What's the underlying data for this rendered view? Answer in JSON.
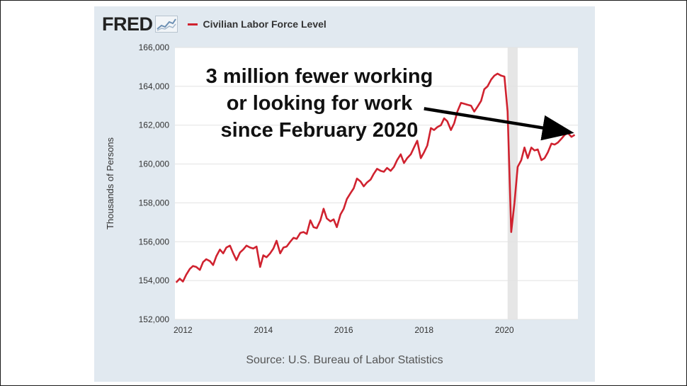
{
  "header": {
    "logo_text": "FRED",
    "legend_label": "Civilian Labor Force Level"
  },
  "source": "Source: U.S. Bureau of Labor Statistics",
  "annotation": {
    "lines": [
      "3 million fewer working",
      "or looking for work",
      "since February 2020"
    ]
  },
  "colors": {
    "series": "#d0222f",
    "panel": "#e1e9f0",
    "plot_bg": "#ffffff",
    "recession": "#e6e6e6",
    "grid": "#e2e2e2",
    "logo": "#222222"
  },
  "chart_data": {
    "type": "line",
    "ylabel": "Thousands of Persons",
    "xlabel": "",
    "xlim": [
      2011.8,
      2021.83
    ],
    "ylim": [
      152000,
      166000
    ],
    "yticks": [
      152000,
      154000,
      156000,
      158000,
      160000,
      162000,
      164000,
      166000
    ],
    "ytick_labels": [
      "152,000",
      "154,000",
      "156,000",
      "158,000",
      "160,000",
      "162,000",
      "164,000",
      "166,000"
    ],
    "xticks": [
      2012,
      2014,
      2016,
      2018,
      2020
    ],
    "xtick_labels": [
      "2012",
      "2014",
      "2016",
      "2018",
      "2020"
    ],
    "grid": true,
    "recession_band": [
      2020.08,
      2020.33
    ],
    "series": [
      {
        "name": "Civilian Labor Force Level",
        "points": [
          [
            2011.83,
            153900
          ],
          [
            2011.92,
            154100
          ],
          [
            2012.0,
            153950
          ],
          [
            2012.08,
            154300
          ],
          [
            2012.17,
            154600
          ],
          [
            2012.25,
            154750
          ],
          [
            2012.33,
            154700
          ],
          [
            2012.42,
            154550
          ],
          [
            2012.5,
            154950
          ],
          [
            2012.58,
            155100
          ],
          [
            2012.67,
            155000
          ],
          [
            2012.75,
            154800
          ],
          [
            2012.83,
            155250
          ],
          [
            2012.92,
            155600
          ],
          [
            2013.0,
            155400
          ],
          [
            2013.08,
            155700
          ],
          [
            2013.17,
            155800
          ],
          [
            2013.25,
            155400
          ],
          [
            2013.33,
            155050
          ],
          [
            2013.42,
            155450
          ],
          [
            2013.5,
            155600
          ],
          [
            2013.58,
            155800
          ],
          [
            2013.67,
            155700
          ],
          [
            2013.75,
            155650
          ],
          [
            2013.83,
            155750
          ],
          [
            2013.92,
            154700
          ],
          [
            2014.0,
            155300
          ],
          [
            2014.08,
            155200
          ],
          [
            2014.17,
            155400
          ],
          [
            2014.25,
            155650
          ],
          [
            2014.33,
            156050
          ],
          [
            2014.42,
            155400
          ],
          [
            2014.5,
            155700
          ],
          [
            2014.58,
            155750
          ],
          [
            2014.67,
            156000
          ],
          [
            2014.75,
            156200
          ],
          [
            2014.83,
            156150
          ],
          [
            2014.92,
            156450
          ],
          [
            2015.0,
            156500
          ],
          [
            2015.08,
            156400
          ],
          [
            2015.17,
            157100
          ],
          [
            2015.25,
            156750
          ],
          [
            2015.33,
            156700
          ],
          [
            2015.42,
            157100
          ],
          [
            2015.5,
            157700
          ],
          [
            2015.58,
            157200
          ],
          [
            2015.67,
            157050
          ],
          [
            2015.75,
            157150
          ],
          [
            2015.83,
            156750
          ],
          [
            2015.92,
            157400
          ],
          [
            2016.0,
            157700
          ],
          [
            2016.08,
            158200
          ],
          [
            2016.17,
            158500
          ],
          [
            2016.25,
            158750
          ],
          [
            2016.33,
            159250
          ],
          [
            2016.42,
            159100
          ],
          [
            2016.5,
            158850
          ],
          [
            2016.58,
            159050
          ],
          [
            2016.67,
            159200
          ],
          [
            2016.75,
            159500
          ],
          [
            2016.83,
            159750
          ],
          [
            2016.92,
            159650
          ],
          [
            2017.0,
            159600
          ],
          [
            2017.08,
            159800
          ],
          [
            2017.17,
            159650
          ],
          [
            2017.25,
            159850
          ],
          [
            2017.33,
            160200
          ],
          [
            2017.42,
            160500
          ],
          [
            2017.5,
            160050
          ],
          [
            2017.58,
            160300
          ],
          [
            2017.67,
            160500
          ],
          [
            2017.75,
            160850
          ],
          [
            2017.83,
            161200
          ],
          [
            2017.92,
            160300
          ],
          [
            2018.0,
            160600
          ],
          [
            2018.08,
            160950
          ],
          [
            2018.17,
            161850
          ],
          [
            2018.25,
            161750
          ],
          [
            2018.33,
            161900
          ],
          [
            2018.42,
            162000
          ],
          [
            2018.5,
            162350
          ],
          [
            2018.58,
            162200
          ],
          [
            2018.67,
            161750
          ],
          [
            2018.75,
            162100
          ],
          [
            2018.83,
            162700
          ],
          [
            2018.92,
            163150
          ],
          [
            2019.0,
            163100
          ],
          [
            2019.08,
            163050
          ],
          [
            2019.17,
            163000
          ],
          [
            2019.25,
            162700
          ],
          [
            2019.33,
            162950
          ],
          [
            2019.42,
            163250
          ],
          [
            2019.5,
            163850
          ],
          [
            2019.58,
            164000
          ],
          [
            2019.67,
            164350
          ],
          [
            2019.75,
            164550
          ],
          [
            2019.83,
            164650
          ],
          [
            2019.92,
            164550
          ],
          [
            2020.0,
            164500
          ],
          [
            2020.08,
            162700
          ],
          [
            2020.17,
            156500
          ],
          [
            2020.25,
            158000
          ],
          [
            2020.33,
            159850
          ],
          [
            2020.42,
            160200
          ],
          [
            2020.5,
            160850
          ],
          [
            2020.58,
            160300
          ],
          [
            2020.67,
            160850
          ],
          [
            2020.75,
            160700
          ],
          [
            2020.83,
            160750
          ],
          [
            2020.92,
            160200
          ],
          [
            2021.0,
            160300
          ],
          [
            2021.08,
            160600
          ],
          [
            2021.17,
            161050
          ],
          [
            2021.25,
            161000
          ],
          [
            2021.33,
            161100
          ],
          [
            2021.42,
            161300
          ],
          [
            2021.5,
            161500
          ],
          [
            2021.58,
            161600
          ],
          [
            2021.67,
            161400
          ],
          [
            2021.75,
            161500
          ]
        ]
      }
    ],
    "arrow": {
      "from": [
        2018.0,
        162850
      ],
      "to": [
        2021.58,
        161650
      ]
    }
  }
}
